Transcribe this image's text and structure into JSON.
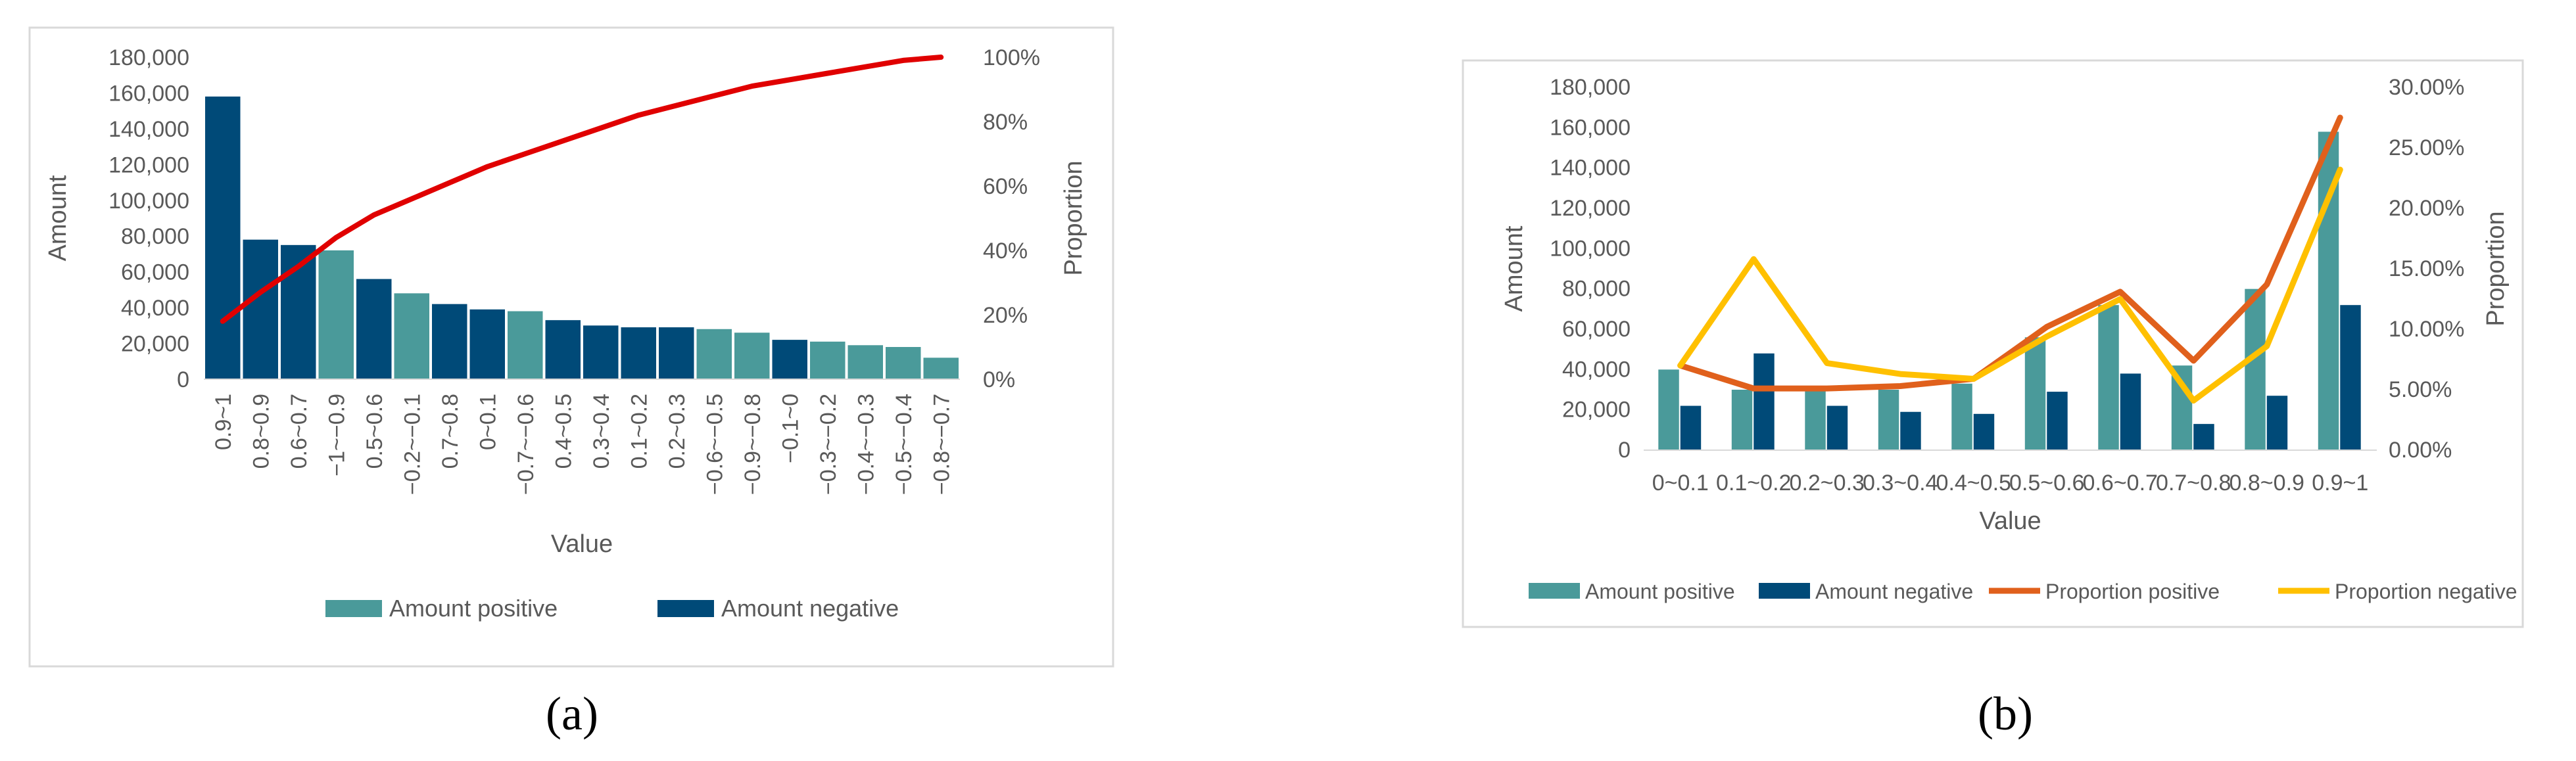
{
  "chart_data": [
    {
      "type": "bar",
      "panel_label": "(a)",
      "categories": [
        "0.9~1",
        "0.8~0.9",
        "0.6~0.7",
        "−1~−0.9",
        "0.5~0.6",
        "−0.2~−0.1",
        "0.7~0.8",
        "0~0.1",
        "−0.7~−0.6",
        "0.4~0.5",
        "0.3~0.4",
        "0.1~0.2",
        "0.2~0.3",
        "−0.6~−0.5",
        "−0.9~−0.8",
        "−0.1~0",
        "−0.3~−0.2",
        "−0.4~−0.3",
        "−0.5~−0.4",
        "−0.8~−0.7"
      ],
      "bar_values": [
        158000,
        78000,
        75000,
        72000,
        56000,
        48000,
        42000,
        39000,
        38000,
        33000,
        30000,
        29000,
        29000,
        28000,
        26000,
        22000,
        21000,
        19000,
        18000,
        12000
      ],
      "bar_series": [
        "Amount negative",
        "Amount negative",
        "Amount negative",
        "Amount positive",
        "Amount negative",
        "Amount positive",
        "Amount negative",
        "Amount negative",
        "Amount positive",
        "Amount negative",
        "Amount negative",
        "Amount negative",
        "Amount negative",
        "Amount positive",
        "Amount positive",
        "Amount negative",
        "Amount positive",
        "Amount positive",
        "Amount positive",
        "Amount positive"
      ],
      "line": {
        "values": [
          18,
          27,
          35,
          44,
          51,
          56,
          61,
          66,
          70,
          74,
          78,
          82,
          85,
          88,
          91,
          93,
          95,
          97,
          99,
          100
        ],
        "color": "#e00000"
      },
      "xlabel": "Value",
      "ylabel": "Amount",
      "y2label": "Proportion",
      "ylim": [
        0,
        180000
      ],
      "y2lim": [
        0,
        100
      ],
      "yticks": [
        "0",
        "20,000",
        "40,000",
        "60,000",
        "80,000",
        "100,000",
        "120,000",
        "140,000",
        "160,000",
        "180,000"
      ],
      "y2ticks": [
        "0%",
        "20%",
        "40%",
        "60%",
        "80%",
        "100%"
      ],
      "legend": [
        {
          "name": "Amount positive",
          "color": "#4a9a9a"
        },
        {
          "name": "Amount negative",
          "color": "#004a78"
        }
      ],
      "legend_position": "bottom",
      "grid": false
    },
    {
      "type": "bar",
      "panel_label": "(b)",
      "categories": [
        "0~0.1",
        "0.1~0.2",
        "0.2~0.3",
        "0.3~0.4",
        "0.4~0.5",
        "0.5~0.6",
        "0.6~0.7",
        "0.7~0.8",
        "0.8~0.9",
        "0.9~1"
      ],
      "series": [
        {
          "name": "Amount positive",
          "type": "bar",
          "axis": "left",
          "color": "#4a9a9a",
          "values": [
            40000,
            30000,
            30000,
            30000,
            33000,
            56000,
            72000,
            42000,
            80000,
            158000
          ]
        },
        {
          "name": "Amount negative",
          "type": "bar",
          "axis": "left",
          "color": "#004a78",
          "values": [
            22000,
            48000,
            22000,
            19000,
            18000,
            29000,
            38000,
            13000,
            27000,
            72000
          ]
        },
        {
          "name": "Proportion positive",
          "type": "line",
          "axis": "right",
          "color": "#e0601c",
          "values": [
            7.0,
            5.1,
            5.1,
            5.3,
            5.9,
            10.2,
            13.1,
            7.4,
            13.7,
            27.5
          ]
        },
        {
          "name": "Proportion negative",
          "type": "line",
          "axis": "right",
          "color": "#ffc000",
          "values": [
            7.0,
            15.8,
            7.2,
            6.3,
            5.9,
            9.4,
            12.5,
            4.1,
            8.6,
            23.2
          ]
        }
      ],
      "xlabel": "Value",
      "ylabel": "Amount",
      "y2label": "Proportion",
      "ylim": [
        0,
        180000
      ],
      "y2lim": [
        0,
        30
      ],
      "yticks": [
        "0",
        "20,000",
        "40,000",
        "60,000",
        "80,000",
        "100,000",
        "120,000",
        "140,000",
        "160,000",
        "180,000"
      ],
      "y2ticks": [
        "0.00%",
        "5.00%",
        "10.00%",
        "15.00%",
        "20.00%",
        "25.00%",
        "30.00%"
      ],
      "legend_position": "bottom",
      "grid": false
    }
  ]
}
